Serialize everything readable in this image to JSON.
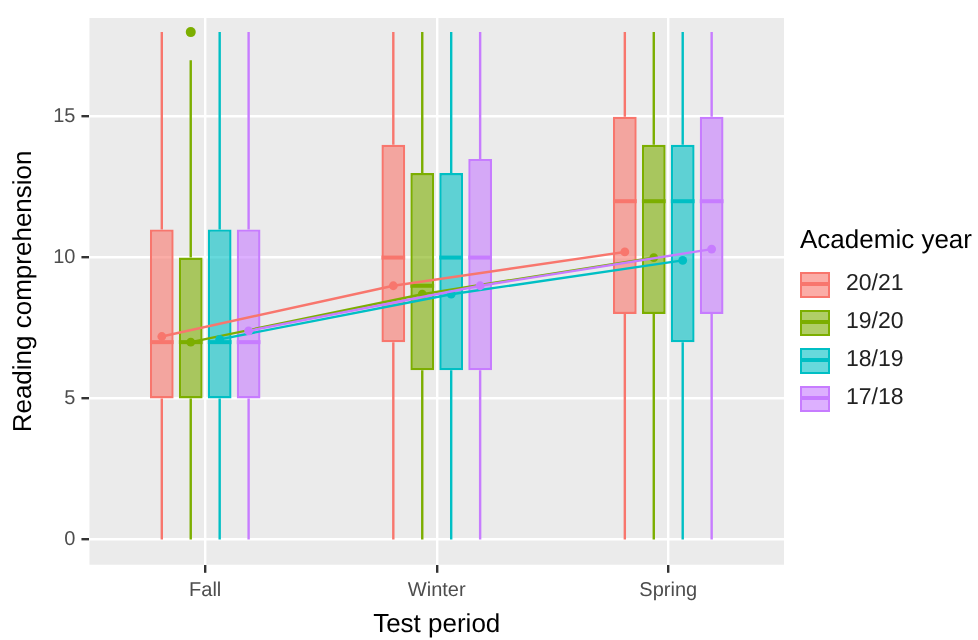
{
  "chart_data": {
    "type": "box",
    "xlabel": "Test period",
    "ylabel": "Reading comprehension",
    "legend_title": "Academic year",
    "categories": [
      "Fall",
      "Winter",
      "Spring"
    ],
    "series": [
      {
        "name": "20/21",
        "color": "#f8766d",
        "boxes": [
          {
            "low": 0,
            "q1": 5,
            "median": 7,
            "q3": 11,
            "high": 18
          },
          {
            "low": 0,
            "q1": 7,
            "median": 10,
            "q3": 14,
            "high": 18
          },
          {
            "low": 0,
            "q1": 8,
            "median": 12,
            "q3": 15,
            "high": 18
          }
        ]
      },
      {
        "name": "19/20",
        "color": "#7cae00",
        "boxes": [
          {
            "low": 0,
            "q1": 5,
            "median": 7,
            "q3": 10,
            "high": 17,
            "outliers": [
              18
            ]
          },
          {
            "low": 0,
            "q1": 6,
            "median": 9,
            "q3": 13,
            "high": 18
          },
          {
            "low": 0,
            "q1": 8,
            "median": 12,
            "q3": 14,
            "high": 18
          }
        ]
      },
      {
        "name": "18/19",
        "color": "#00bfc4",
        "boxes": [
          {
            "low": 0,
            "q1": 5,
            "median": 7,
            "q3": 11,
            "high": 18
          },
          {
            "low": 0,
            "q1": 6,
            "median": 10,
            "q3": 13,
            "high": 18
          },
          {
            "low": 0,
            "q1": 7,
            "median": 12,
            "q3": 14,
            "high": 18
          }
        ]
      },
      {
        "name": "17/18",
        "color": "#c77cff",
        "boxes": [
          {
            "low": 0,
            "q1": 5,
            "median": 7,
            "q3": 11,
            "high": 18
          },
          {
            "low": 0,
            "q1": 6,
            "median": 10,
            "q3": 13.5,
            "high": 18
          },
          {
            "low": 0,
            "q1": 8,
            "median": 12,
            "q3": 15,
            "high": 18
          }
        ]
      },
      {
        "type": "line",
        "marker": "circle",
        "color": "#f8766d",
        "values": [
          7.2,
          9.0,
          10.2
        ]
      },
      {
        "type": "line",
        "marker": "circle",
        "color": "#7cae00",
        "values": [
          7.0,
          8.7,
          10.0
        ]
      },
      {
        "type": "line",
        "marker": "circle",
        "color": "#00bfc4",
        "values": [
          7.1,
          8.7,
          9.9
        ]
      },
      {
        "type": "line",
        "marker": "circle",
        "color": "#c77cff",
        "values": [
          7.4,
          9.0,
          10.3
        ]
      }
    ],
    "ylim": [
      -0.9,
      18.5
    ],
    "yticks": [
      0,
      5,
      10,
      15
    ],
    "grid": true,
    "legend": "right"
  }
}
